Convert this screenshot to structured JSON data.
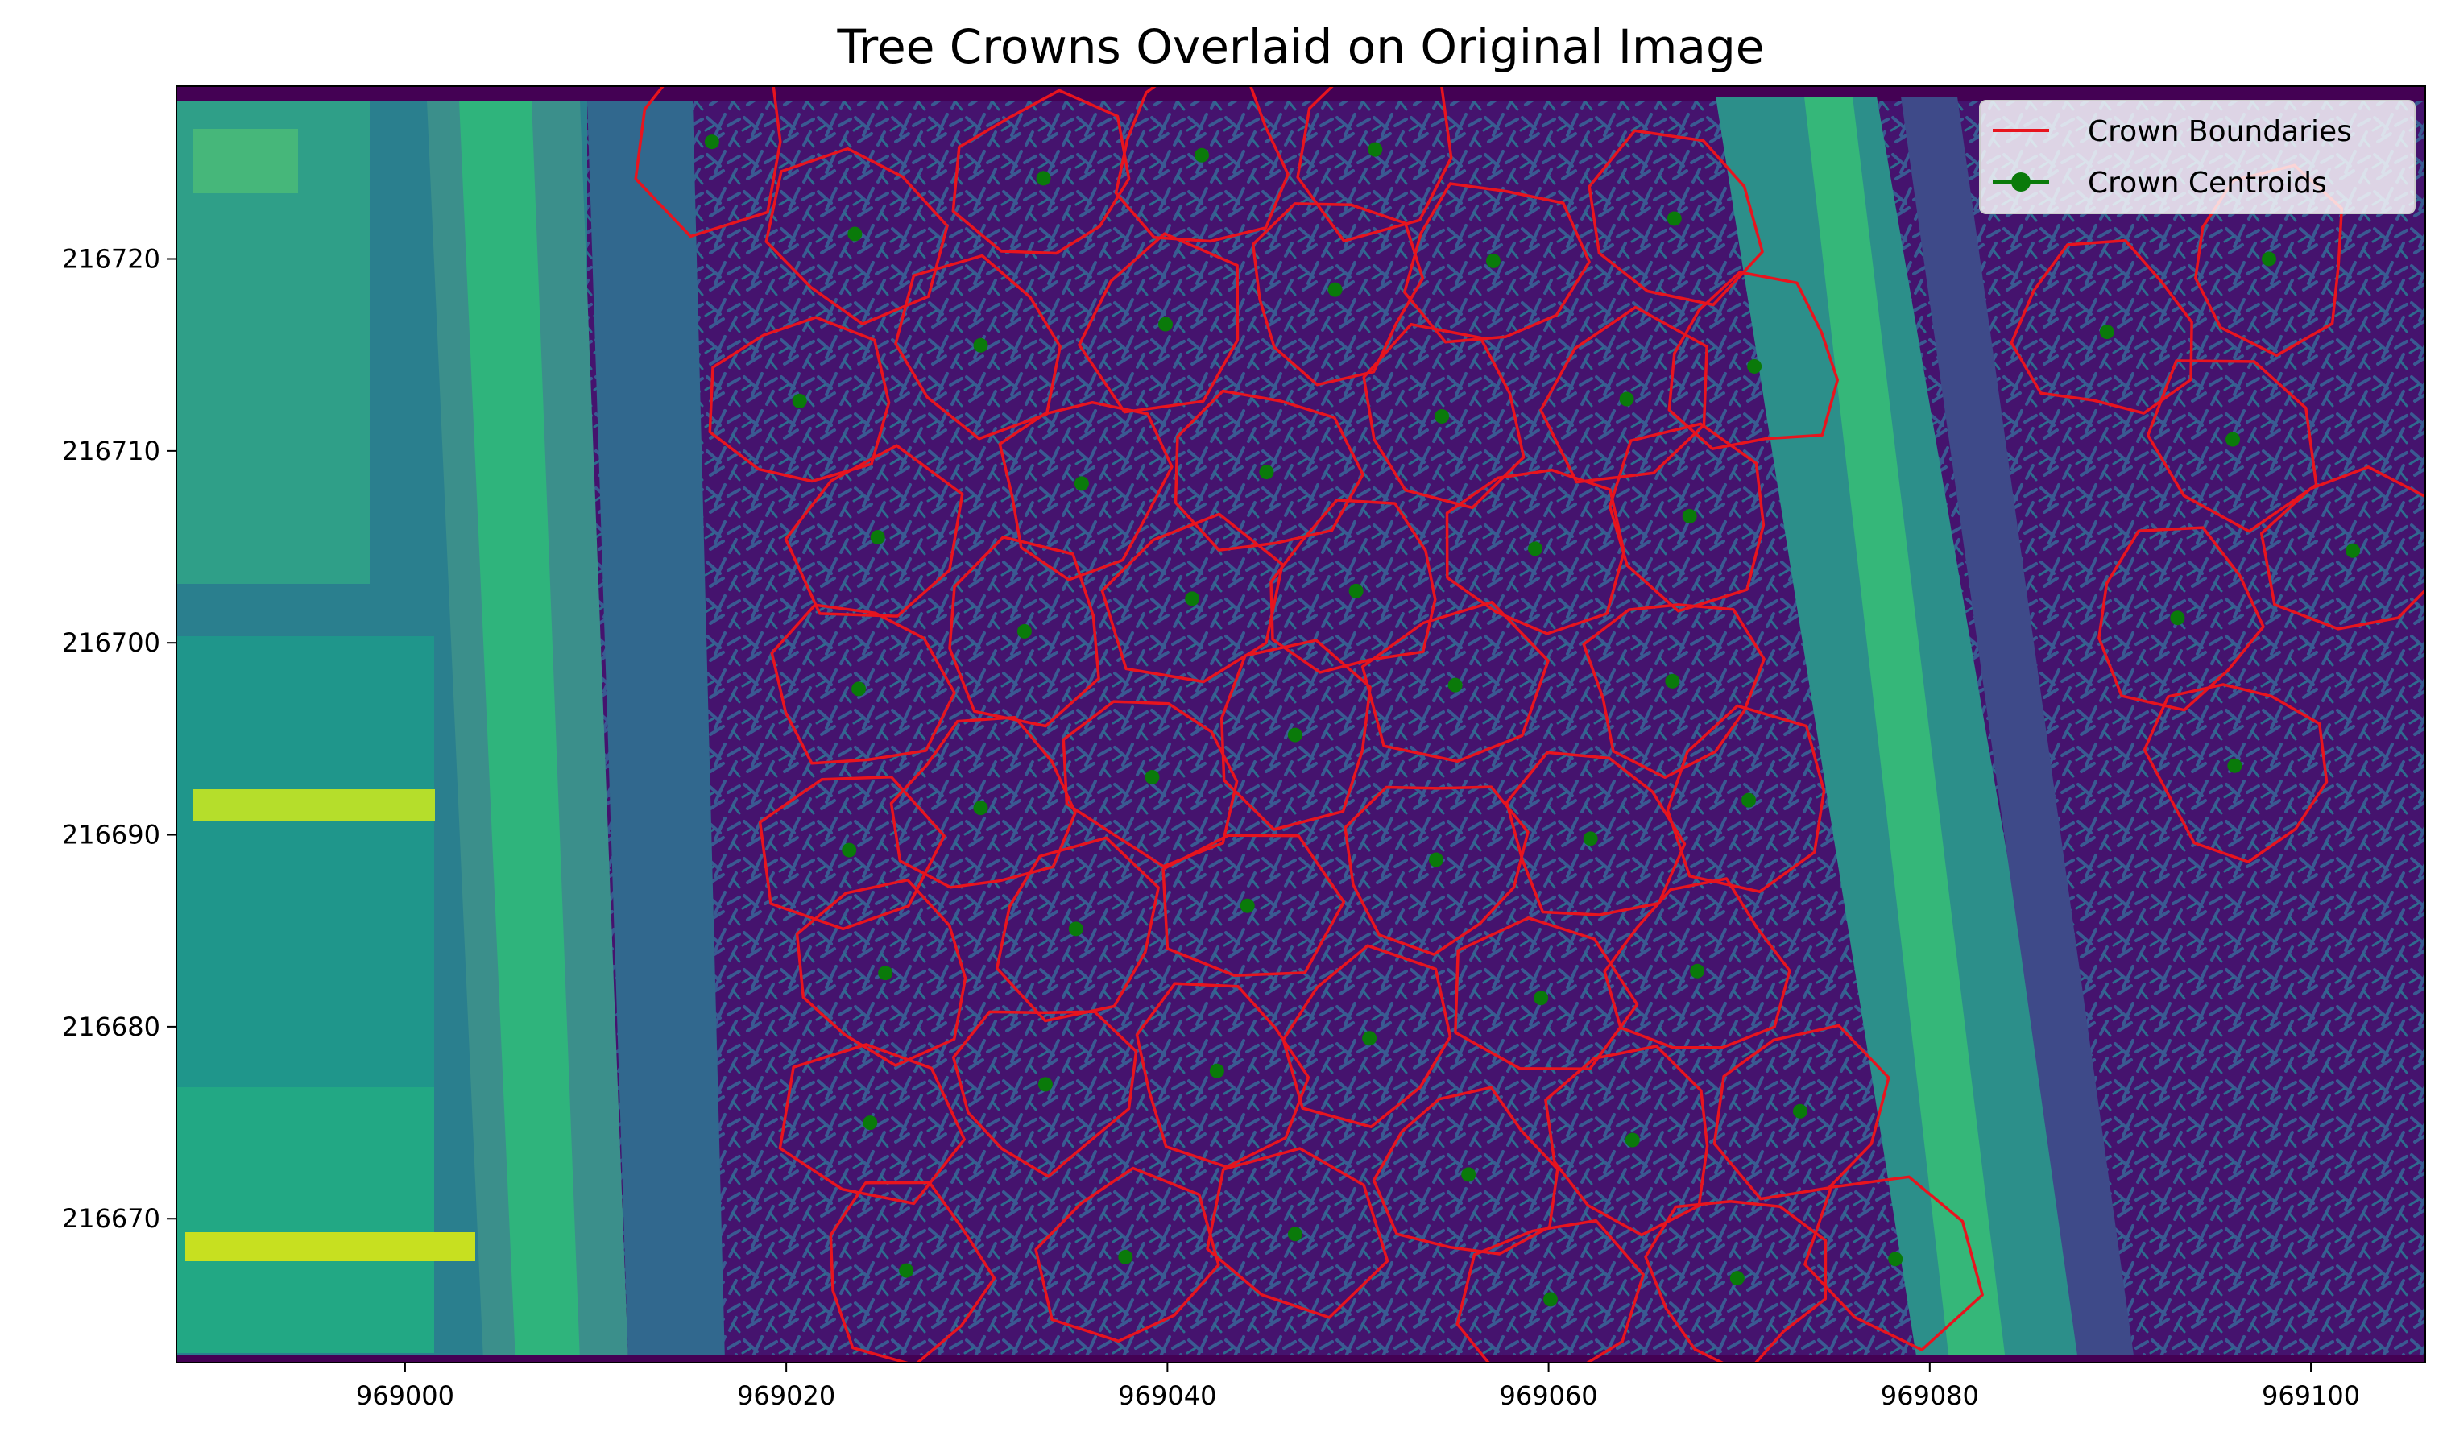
{
  "chart_data": {
    "type": "scatter",
    "title": "Tree Crowns Overlaid on Original Image",
    "xlabel": "",
    "ylabel": "",
    "xlim": [
      968988,
      969106
    ],
    "ylim": [
      216662.5,
      216729
    ],
    "x_ticks": [
      969000,
      969020,
      969040,
      969060,
      969080,
      969100
    ],
    "y_ticks": [
      216670,
      216680,
      216690,
      216700,
      216710,
      216720
    ],
    "grid": false,
    "background": "image (viridis colormap aerial raster)",
    "legend": {
      "placement": "top-right",
      "entries": [
        {
          "label": "Crown Boundaries",
          "color": "#e8141e",
          "marker": "line"
        },
        {
          "label": "Crown Centroids",
          "color": "#0a7a0a",
          "marker": "line-with-circle"
        }
      ]
    },
    "series": [
      {
        "name": "Crown Centroids",
        "color": "#0a7a0a",
        "points": [
          [
            969016.1,
            216726.1
          ],
          [
            969023.6,
            216721.3
          ],
          [
            969033.5,
            216724.2
          ],
          [
            969041.8,
            216725.4
          ],
          [
            969050.9,
            216725.7
          ],
          [
            969066.6,
            216722.1
          ],
          [
            969057.1,
            216719.9
          ],
          [
            969048.8,
            216718.4
          ],
          [
            969039.9,
            216716.6
          ],
          [
            969030.2,
            216715.5
          ],
          [
            969020.7,
            216712.6
          ],
          [
            969070.8,
            216714.4
          ],
          [
            969064.1,
            216712.7
          ],
          [
            969054.4,
            216711.8
          ],
          [
            969045.2,
            216708.9
          ],
          [
            969035.5,
            216708.3
          ],
          [
            969024.8,
            216705.5
          ],
          [
            969067.4,
            216706.6
          ],
          [
            969059.3,
            216704.9
          ],
          [
            969049.9,
            216702.7
          ],
          [
            969041.3,
            216702.3
          ],
          [
            969032.5,
            216700.6
          ],
          [
            969023.8,
            216697.6
          ],
          [
            969066.5,
            216698.0
          ],
          [
            969055.1,
            216697.8
          ],
          [
            969046.7,
            216695.2
          ],
          [
            969039.2,
            216693.0
          ],
          [
            969030.2,
            216691.4
          ],
          [
            969023.3,
            216689.2
          ],
          [
            969070.5,
            216691.8
          ],
          [
            969062.2,
            216689.8
          ],
          [
            969054.1,
            216688.7
          ],
          [
            969044.2,
            216686.3
          ],
          [
            969035.2,
            216685.1
          ],
          [
            969025.2,
            216682.8
          ],
          [
            969067.8,
            216682.9
          ],
          [
            969059.6,
            216681.5
          ],
          [
            969050.6,
            216679.4
          ],
          [
            969042.6,
            216677.7
          ],
          [
            969033.6,
            216677.0
          ],
          [
            969024.4,
            216675.0
          ],
          [
            969073.2,
            216675.6
          ],
          [
            969064.4,
            216674.1
          ],
          [
            969055.8,
            216672.3
          ],
          [
            969046.7,
            216669.2
          ],
          [
            969037.8,
            216668.0
          ],
          [
            969026.3,
            216667.3
          ],
          [
            969069.9,
            216666.9
          ],
          [
            969078.2,
            216667.9
          ],
          [
            969060.1,
            216665.8
          ],
          [
            969097.8,
            216720.0
          ],
          [
            969089.3,
            216716.2
          ],
          [
            969095.9,
            216710.6
          ],
          [
            969102.2,
            216704.8
          ],
          [
            969093.0,
            216701.3
          ],
          [
            969096.0,
            216693.6
          ]
        ]
      }
    ]
  }
}
